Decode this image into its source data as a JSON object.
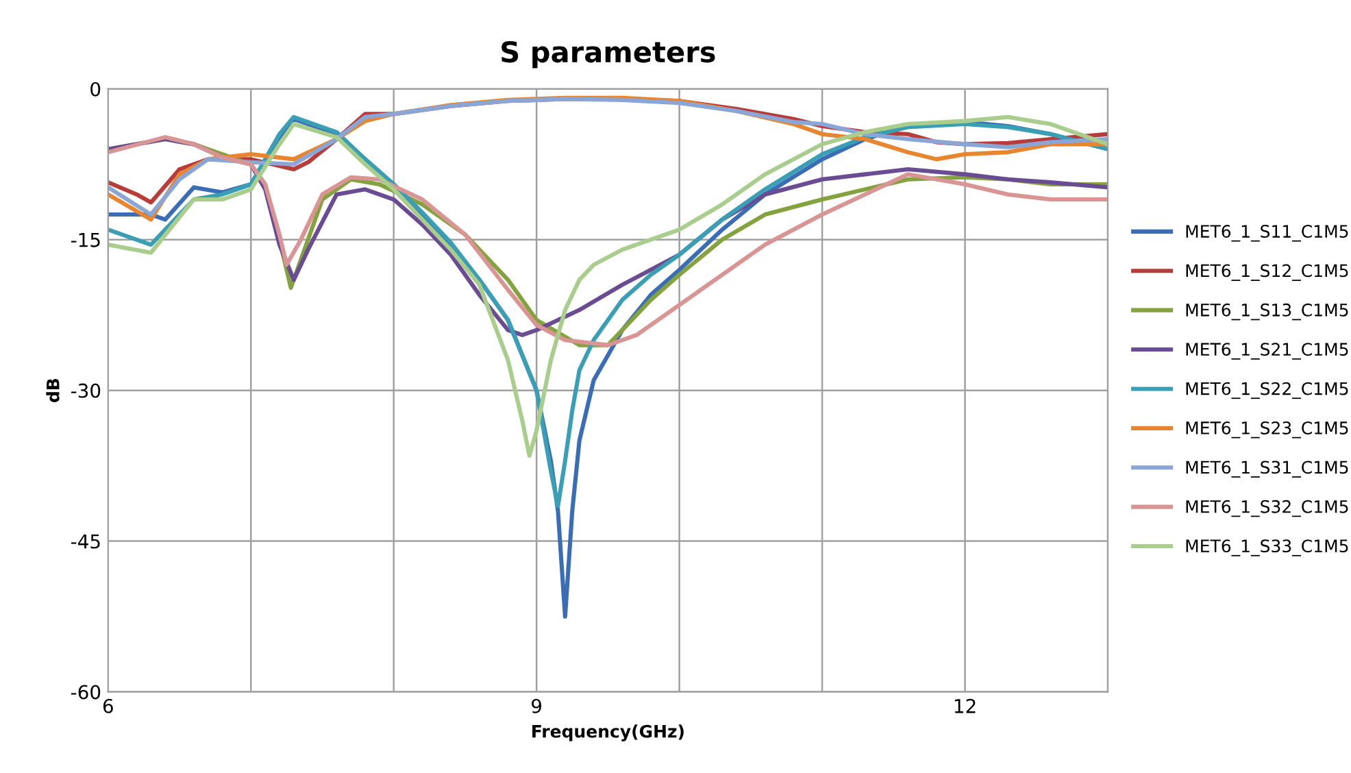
{
  "chart_data": {
    "type": "line",
    "title": "S parameters",
    "xlabel": "Frequency(GHz)",
    "ylabel": "dB",
    "xlim": [
      6,
      13
    ],
    "xticks": [
      6,
      {
        "value": 7,
        "label": null
      },
      {
        "value": 8,
        "label": null
      },
      9,
      {
        "value": 10,
        "label": null
      },
      {
        "value": 11,
        "label": null
      },
      12,
      {
        "value": 13,
        "label": null
      }
    ],
    "ylim": [
      -60,
      0
    ],
    "yticks": [
      -60,
      -45,
      -30,
      -15,
      0
    ],
    "grid": true,
    "legend": "right",
    "marker": "none",
    "line_style": "solid",
    "series": [
      {
        "name": "MET6_1_S11_C1M5",
        "color": "#3a6db5",
        "x": [
          6.0,
          6.3,
          6.4,
          6.6,
          6.8,
          7.0,
          7.2,
          7.3,
          7.6,
          7.8,
          8.0,
          8.2,
          8.4,
          8.6,
          8.8,
          9.0,
          9.1,
          9.15,
          9.2,
          9.25,
          9.3,
          9.4,
          9.6,
          9.8,
          10.0,
          10.3,
          10.6,
          11.0,
          11.3,
          11.6,
          12.0,
          12.3,
          12.6,
          13.0
        ],
        "values": [
          -12.5,
          -12.5,
          -13,
          -9.8,
          -10.3,
          -9.5,
          -5,
          -3,
          -4.5,
          -7,
          -9.5,
          -12.5,
          -15.5,
          -19,
          -23,
          -30,
          -37,
          -42,
          -52.5,
          -42,
          -35,
          -29,
          -24,
          -20.5,
          -18,
          -14,
          -10.5,
          -7,
          -5,
          -3.7,
          -3.3,
          -3.7,
          -4.5,
          -6
        ]
      },
      {
        "name": "MET6_1_S12_C1M5",
        "color": "#b83c3a",
        "x": [
          6.0,
          6.2,
          6.3,
          6.5,
          6.7,
          7.0,
          7.3,
          7.4,
          7.6,
          7.8,
          8.0,
          8.4,
          8.8,
          9.2,
          9.6,
          10.0,
          10.4,
          10.8,
          11.0,
          11.3,
          11.6,
          11.8,
          12.0,
          12.3,
          12.6,
          13.0
        ],
        "values": [
          -9.3,
          -10.5,
          -11.3,
          -8,
          -7,
          -7,
          -8,
          -7.3,
          -5,
          -2.5,
          -2.5,
          -1.7,
          -1.2,
          -1.0,
          -1.0,
          -1.2,
          -2,
          -3,
          -3.7,
          -4.3,
          -4.5,
          -5.3,
          -5.5,
          -5.4,
          -5,
          -4.5
        ]
      },
      {
        "name": "MET6_1_S13_C1M5",
        "color": "#84a23e",
        "x": [
          6.0,
          6.4,
          6.6,
          6.8,
          7.0,
          7.1,
          7.2,
          7.28,
          7.35,
          7.5,
          7.7,
          7.9,
          8.2,
          8.5,
          8.8,
          9.0,
          9.3,
          9.5,
          9.8,
          10.0,
          10.3,
          10.6,
          11.0,
          11.3,
          11.6,
          12.0,
          12.3,
          12.6,
          13.0
        ],
        "values": [
          -6,
          -5,
          -5.5,
          -6.5,
          -7.5,
          -9.5,
          -15,
          -19.8,
          -17,
          -11,
          -9,
          -9.5,
          -11.5,
          -14.5,
          -19,
          -23,
          -25.5,
          -25.5,
          -21,
          -18.5,
          -15,
          -12.5,
          -11,
          -10,
          -9,
          -8.8,
          -9,
          -9.5,
          -9.5
        ]
      },
      {
        "name": "MET6_1_S21_C1M5",
        "color": "#6a4c93",
        "x": [
          6.0,
          6.4,
          6.6,
          6.8,
          7.0,
          7.1,
          7.2,
          7.3,
          7.4,
          7.6,
          7.8,
          8.0,
          8.2,
          8.4,
          8.6,
          8.8,
          8.9,
          9.0,
          9.3,
          9.6,
          10.0,
          10.3,
          10.6,
          11.0,
          11.3,
          11.6,
          12.0,
          12.3,
          12.6,
          13.0
        ],
        "values": [
          -6,
          -5,
          -5.5,
          -6.8,
          -7.5,
          -10,
          -15.5,
          -19,
          -16,
          -10.5,
          -10,
          -11,
          -13.5,
          -16.5,
          -20.5,
          -24,
          -24.5,
          -24,
          -22,
          -19.5,
          -16.5,
          -13,
          -10.5,
          -9,
          -8.5,
          -8,
          -8.5,
          -9,
          -9.3,
          -9.8
        ]
      },
      {
        "name": "MET6_1_S22_C1M5",
        "color": "#3a9eb5",
        "x": [
          6.0,
          6.3,
          6.6,
          6.8,
          7.0,
          7.2,
          7.3,
          7.6,
          7.8,
          8.0,
          8.2,
          8.4,
          8.6,
          8.8,
          9.0,
          9.1,
          9.15,
          9.2,
          9.25,
          9.3,
          9.4,
          9.6,
          9.8,
          10.0,
          10.3,
          10.6,
          11.0,
          11.3,
          11.6,
          12.0,
          12.3,
          12.6,
          13.0
        ],
        "values": [
          -14,
          -15.5,
          -11,
          -10.5,
          -9.5,
          -4.5,
          -2.8,
          -4.3,
          -7,
          -9.5,
          -12.3,
          -15.3,
          -19,
          -23,
          -30,
          -38,
          -41.5,
          -37,
          -32,
          -28,
          -25,
          -21,
          -18.5,
          -16.5,
          -13,
          -10,
          -6.5,
          -4.8,
          -3.8,
          -3.5,
          -3.8,
          -4.5,
          -6
        ]
      },
      {
        "name": "MET6_1_S23_C1M5",
        "color": "#e8852f",
        "x": [
          6.0,
          6.3,
          6.5,
          6.7,
          7.0,
          7.3,
          7.6,
          7.8,
          8.0,
          8.4,
          8.8,
          9.2,
          9.6,
          10.0,
          10.4,
          10.8,
          11.0,
          11.3,
          11.6,
          11.8,
          12.0,
          12.3,
          12.6,
          13.0
        ],
        "values": [
          -10.5,
          -13,
          -8.5,
          -7,
          -6.5,
          -7,
          -5,
          -3.2,
          -2.5,
          -1.6,
          -1.1,
          -0.9,
          -0.9,
          -1.2,
          -2.2,
          -3.5,
          -4.5,
          -5,
          -6.3,
          -7,
          -6.5,
          -6.3,
          -5.5,
          -5.5
        ]
      },
      {
        "name": "MET6_1_S31_C1M5",
        "color": "#8aa6d6",
        "x": [
          6.0,
          6.3,
          6.5,
          6.7,
          7.0,
          7.3,
          7.6,
          7.8,
          8.0,
          8.4,
          8.8,
          9.2,
          9.6,
          10.0,
          10.4,
          10.8,
          11.0,
          11.3,
          11.6,
          12.0,
          12.3,
          12.6,
          13.0
        ],
        "values": [
          -9.8,
          -12.5,
          -9,
          -7,
          -7.3,
          -7.5,
          -5,
          -2.8,
          -2.5,
          -1.7,
          -1.2,
          -1.0,
          -1.1,
          -1.4,
          -2.2,
          -3.3,
          -3.5,
          -4.5,
          -5,
          -5.5,
          -5.8,
          -5.3,
          -5
        ]
      },
      {
        "name": "MET6_1_S32_C1M5",
        "color": "#d99594",
        "x": [
          6.0,
          6.4,
          6.6,
          6.8,
          7.0,
          7.1,
          7.2,
          7.25,
          7.35,
          7.5,
          7.7,
          7.9,
          8.2,
          8.5,
          8.8,
          9.0,
          9.2,
          9.5,
          9.7,
          10.0,
          10.3,
          10.6,
          11.0,
          11.3,
          11.6,
          12.0,
          12.3,
          12.6,
          13.0
        ],
        "values": [
          -6.3,
          -4.8,
          -5.5,
          -6.8,
          -7.5,
          -9.5,
          -14.5,
          -17.5,
          -15,
          -10.5,
          -8.8,
          -9,
          -11,
          -14.5,
          -20,
          -23.5,
          -25,
          -25.5,
          -24.5,
          -21.5,
          -18.5,
          -15.5,
          -12.5,
          -10.5,
          -8.5,
          -9.5,
          -10.5,
          -11,
          -11
        ]
      },
      {
        "name": "MET6_1_S33_C1M5",
        "color": "#a9cd8d",
        "x": [
          6.0,
          6.3,
          6.6,
          6.8,
          7.0,
          7.2,
          7.3,
          7.6,
          7.8,
          8.0,
          8.2,
          8.4,
          8.6,
          8.8,
          8.9,
          8.95,
          9.0,
          9.1,
          9.2,
          9.3,
          9.4,
          9.6,
          9.8,
          10.0,
          10.3,
          10.6,
          11.0,
          11.3,
          11.6,
          12.0,
          12.3,
          12.6,
          13.0
        ],
        "values": [
          -15.5,
          -16.3,
          -11,
          -11,
          -10,
          -5.5,
          -3.5,
          -4.8,
          -7.5,
          -10,
          -13,
          -16,
          -19.5,
          -27,
          -33,
          -36.5,
          -34,
          -27,
          -22,
          -19,
          -17.5,
          -16,
          -15,
          -14,
          -11.5,
          -8.5,
          -5.5,
          -4.3,
          -3.5,
          -3.2,
          -2.8,
          -3.5,
          -5.5
        ]
      }
    ]
  }
}
